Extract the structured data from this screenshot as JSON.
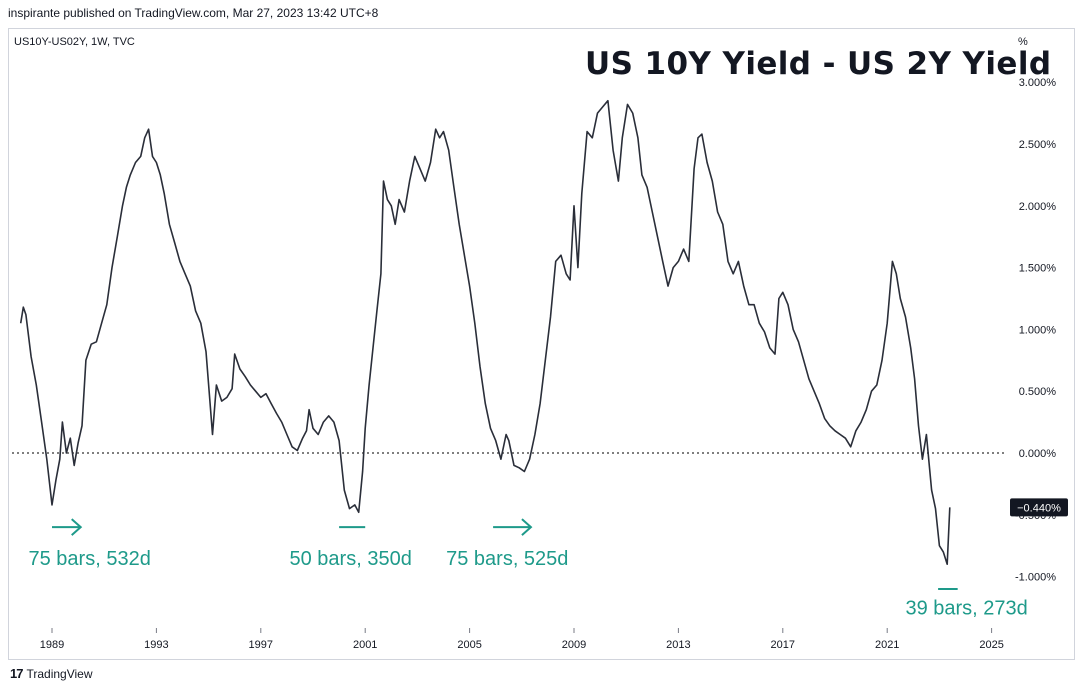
{
  "header": {
    "published": "inspirante published on TradingView.com, Mar 27, 2023 13:42 UTC+8",
    "symbol": "US10Y-US02Y, 1W, TVC",
    "unit": "%"
  },
  "footer": {
    "brand": "TradingView"
  },
  "colors": {
    "line": "#2a2e39",
    "annotation": "#1e9a8a",
    "zero_line": "#555555",
    "badge_bg": "#131722",
    "badge_text": "#ffffff"
  },
  "chart_data": {
    "type": "line",
    "title": "US 10Y Yield - US 2Y Yield",
    "xlabel": "",
    "ylabel": "",
    "xlim": [
      1987.5,
      2025.1
    ],
    "ylim": [
      -1.3,
      3.0
    ],
    "x_ticks": [
      {
        "value": 1989,
        "label": "1989"
      },
      {
        "value": 1993,
        "label": "1993"
      },
      {
        "value": 1997,
        "label": "1997"
      },
      {
        "value": 2001,
        "label": "2001"
      },
      {
        "value": 2005,
        "label": "2005"
      },
      {
        "value": 2009,
        "label": "2009"
      },
      {
        "value": 2013,
        "label": "2013"
      },
      {
        "value": 2017,
        "label": "2017"
      },
      {
        "value": 2021,
        "label": "2021"
      },
      {
        "value": 2025,
        "label": "2025"
      }
    ],
    "y_ticks": [
      {
        "value": 3.0,
        "label": "3.000%"
      },
      {
        "value": 2.5,
        "label": "2.500%"
      },
      {
        "value": 2.0,
        "label": "2.000%"
      },
      {
        "value": 1.5,
        "label": "1.500%"
      },
      {
        "value": 1.0,
        "label": "1.000%"
      },
      {
        "value": 0.5,
        "label": "0.500%"
      },
      {
        "value": 0.0,
        "label": "0.000%"
      },
      {
        "value": -0.5,
        "label": "-0.500%"
      },
      {
        "value": -1.0,
        "label": "-1.000%"
      }
    ],
    "last_value": {
      "value": -0.44,
      "label": "−0.440%"
    },
    "reference_line": {
      "y": 0.0,
      "style": "dotted"
    },
    "series": [
      {
        "points": [
          [
            1987.8,
            1.05
          ],
          [
            1987.9,
            1.18
          ],
          [
            1988.0,
            1.12
          ],
          [
            1988.2,
            0.78
          ],
          [
            1988.4,
            0.55
          ],
          [
            1988.6,
            0.25
          ],
          [
            1988.8,
            -0.05
          ],
          [
            1989.0,
            -0.42
          ],
          [
            1989.15,
            -0.22
          ],
          [
            1989.3,
            -0.05
          ],
          [
            1989.4,
            0.25
          ],
          [
            1989.55,
            0.0
          ],
          [
            1989.7,
            0.12
          ],
          [
            1989.85,
            -0.1
          ],
          [
            1990.0,
            0.08
          ],
          [
            1990.15,
            0.22
          ],
          [
            1990.3,
            0.75
          ],
          [
            1990.5,
            0.88
          ],
          [
            1990.7,
            0.9
          ],
          [
            1990.9,
            1.05
          ],
          [
            1991.1,
            1.2
          ],
          [
            1991.3,
            1.5
          ],
          [
            1991.5,
            1.75
          ],
          [
            1991.7,
            2.0
          ],
          [
            1991.85,
            2.15
          ],
          [
            1992.0,
            2.25
          ],
          [
            1992.2,
            2.35
          ],
          [
            1992.4,
            2.4
          ],
          [
            1992.55,
            2.55
          ],
          [
            1992.7,
            2.62
          ],
          [
            1992.85,
            2.4
          ],
          [
            1993.0,
            2.35
          ],
          [
            1993.15,
            2.25
          ],
          [
            1993.3,
            2.1
          ],
          [
            1993.5,
            1.85
          ],
          [
            1993.7,
            1.7
          ],
          [
            1993.9,
            1.55
          ],
          [
            1994.1,
            1.45
          ],
          [
            1994.3,
            1.35
          ],
          [
            1994.5,
            1.15
          ],
          [
            1994.7,
            1.05
          ],
          [
            1994.9,
            0.82
          ],
          [
            1995.05,
            0.42
          ],
          [
            1995.15,
            0.15
          ],
          [
            1995.3,
            0.55
          ],
          [
            1995.5,
            0.42
          ],
          [
            1995.7,
            0.45
          ],
          [
            1995.9,
            0.52
          ],
          [
            1996.0,
            0.8
          ],
          [
            1996.2,
            0.68
          ],
          [
            1996.4,
            0.62
          ],
          [
            1996.6,
            0.55
          ],
          [
            1996.8,
            0.5
          ],
          [
            1997.0,
            0.45
          ],
          [
            1997.2,
            0.48
          ],
          [
            1997.4,
            0.4
          ],
          [
            1997.6,
            0.32
          ],
          [
            1997.8,
            0.25
          ],
          [
            1998.0,
            0.15
          ],
          [
            1998.2,
            0.05
          ],
          [
            1998.4,
            0.02
          ],
          [
            1998.6,
            0.12
          ],
          [
            1998.75,
            0.18
          ],
          [
            1998.85,
            0.35
          ],
          [
            1999.0,
            0.2
          ],
          [
            1999.2,
            0.15
          ],
          [
            1999.4,
            0.25
          ],
          [
            1999.6,
            0.3
          ],
          [
            1999.8,
            0.25
          ],
          [
            2000.0,
            0.1
          ],
          [
            2000.2,
            -0.3
          ],
          [
            2000.4,
            -0.45
          ],
          [
            2000.6,
            -0.42
          ],
          [
            2000.75,
            -0.48
          ],
          [
            2000.9,
            -0.15
          ],
          [
            2001.0,
            0.2
          ],
          [
            2001.15,
            0.55
          ],
          [
            2001.3,
            0.85
          ],
          [
            2001.45,
            1.15
          ],
          [
            2001.6,
            1.45
          ],
          [
            2001.7,
            2.2
          ],
          [
            2001.85,
            2.05
          ],
          [
            2002.0,
            2.0
          ],
          [
            2002.15,
            1.85
          ],
          [
            2002.3,
            2.05
          ],
          [
            2002.5,
            1.95
          ],
          [
            2002.7,
            2.2
          ],
          [
            2002.9,
            2.4
          ],
          [
            2003.1,
            2.3
          ],
          [
            2003.3,
            2.2
          ],
          [
            2003.5,
            2.35
          ],
          [
            2003.7,
            2.62
          ],
          [
            2003.85,
            2.55
          ],
          [
            2004.0,
            2.6
          ],
          [
            2004.2,
            2.45
          ],
          [
            2004.4,
            2.15
          ],
          [
            2004.6,
            1.85
          ],
          [
            2004.8,
            1.6
          ],
          [
            2005.0,
            1.35
          ],
          [
            2005.2,
            1.05
          ],
          [
            2005.4,
            0.7
          ],
          [
            2005.6,
            0.4
          ],
          [
            2005.8,
            0.2
          ],
          [
            2006.0,
            0.1
          ],
          [
            2006.2,
            -0.05
          ],
          [
            2006.4,
            0.15
          ],
          [
            2006.5,
            0.1
          ],
          [
            2006.7,
            -0.1
          ],
          [
            2006.9,
            -0.12
          ],
          [
            2007.1,
            -0.15
          ],
          [
            2007.3,
            -0.05
          ],
          [
            2007.5,
            0.15
          ],
          [
            2007.7,
            0.4
          ],
          [
            2007.9,
            0.75
          ],
          [
            2008.1,
            1.1
          ],
          [
            2008.3,
            1.55
          ],
          [
            2008.5,
            1.6
          ],
          [
            2008.7,
            1.45
          ],
          [
            2008.85,
            1.4
          ],
          [
            2009.0,
            2.0
          ],
          [
            2009.15,
            1.5
          ],
          [
            2009.3,
            2.1
          ],
          [
            2009.5,
            2.6
          ],
          [
            2009.7,
            2.55
          ],
          [
            2009.9,
            2.75
          ],
          [
            2010.1,
            2.8
          ],
          [
            2010.3,
            2.85
          ],
          [
            2010.5,
            2.45
          ],
          [
            2010.7,
            2.2
          ],
          [
            2010.85,
            2.55
          ],
          [
            2011.05,
            2.82
          ],
          [
            2011.25,
            2.75
          ],
          [
            2011.45,
            2.55
          ],
          [
            2011.6,
            2.25
          ],
          [
            2011.8,
            2.15
          ],
          [
            2012.0,
            1.95
          ],
          [
            2012.2,
            1.75
          ],
          [
            2012.4,
            1.55
          ],
          [
            2012.6,
            1.35
          ],
          [
            2012.8,
            1.5
          ],
          [
            2013.0,
            1.55
          ],
          [
            2013.2,
            1.65
          ],
          [
            2013.4,
            1.55
          ],
          [
            2013.6,
            2.3
          ],
          [
            2013.75,
            2.55
          ],
          [
            2013.9,
            2.58
          ],
          [
            2014.1,
            2.35
          ],
          [
            2014.3,
            2.2
          ],
          [
            2014.5,
            1.95
          ],
          [
            2014.7,
            1.85
          ],
          [
            2014.9,
            1.55
          ],
          [
            2015.1,
            1.45
          ],
          [
            2015.3,
            1.55
          ],
          [
            2015.5,
            1.35
          ],
          [
            2015.7,
            1.2
          ],
          [
            2015.9,
            1.2
          ],
          [
            2016.1,
            1.05
          ],
          [
            2016.3,
            0.98
          ],
          [
            2016.5,
            0.85
          ],
          [
            2016.7,
            0.8
          ],
          [
            2016.85,
            1.25
          ],
          [
            2017.0,
            1.3
          ],
          [
            2017.2,
            1.2
          ],
          [
            2017.4,
            1.0
          ],
          [
            2017.6,
            0.9
          ],
          [
            2017.8,
            0.75
          ],
          [
            2018.0,
            0.6
          ],
          [
            2018.2,
            0.5
          ],
          [
            2018.4,
            0.4
          ],
          [
            2018.6,
            0.28
          ],
          [
            2018.8,
            0.22
          ],
          [
            2019.0,
            0.18
          ],
          [
            2019.2,
            0.15
          ],
          [
            2019.4,
            0.12
          ],
          [
            2019.6,
            0.05
          ],
          [
            2019.8,
            0.18
          ],
          [
            2020.0,
            0.25
          ],
          [
            2020.2,
            0.35
          ],
          [
            2020.4,
            0.5
          ],
          [
            2020.6,
            0.55
          ],
          [
            2020.8,
            0.75
          ],
          [
            2021.0,
            1.05
          ],
          [
            2021.2,
            1.55
          ],
          [
            2021.35,
            1.45
          ],
          [
            2021.5,
            1.25
          ],
          [
            2021.7,
            1.1
          ],
          [
            2021.9,
            0.85
          ],
          [
            2022.05,
            0.6
          ],
          [
            2022.2,
            0.22
          ],
          [
            2022.35,
            -0.05
          ],
          [
            2022.5,
            0.15
          ],
          [
            2022.7,
            -0.3
          ],
          [
            2022.85,
            -0.45
          ],
          [
            2023.0,
            -0.75
          ],
          [
            2023.15,
            -0.8
          ],
          [
            2023.3,
            -0.9
          ],
          [
            2023.4,
            -0.44
          ]
        ]
      }
    ],
    "annotations": [
      {
        "text": "75 bars, 532d",
        "x": 1988.1,
        "y": -0.85,
        "arrow": {
          "x1": 1989.0,
          "x2": 1990.1,
          "y": -0.6
        }
      },
      {
        "text": "50 bars, 350d",
        "x": 1998.1,
        "y": -0.85,
        "arrow": {
          "x1": 2000.0,
          "x2": 2001.0,
          "y": -0.6,
          "head": false
        }
      },
      {
        "text": "75 bars, 525d",
        "x": 2004.1,
        "y": -0.85,
        "arrow": {
          "x1": 2005.9,
          "x2": 2007.35,
          "y": -0.6
        }
      },
      {
        "text": "39 bars, 273d",
        "x": 2021.7,
        "y": -1.25,
        "arrow": {
          "x1": 2022.95,
          "x2": 2023.7,
          "y": -1.1,
          "head": false
        }
      }
    ]
  }
}
